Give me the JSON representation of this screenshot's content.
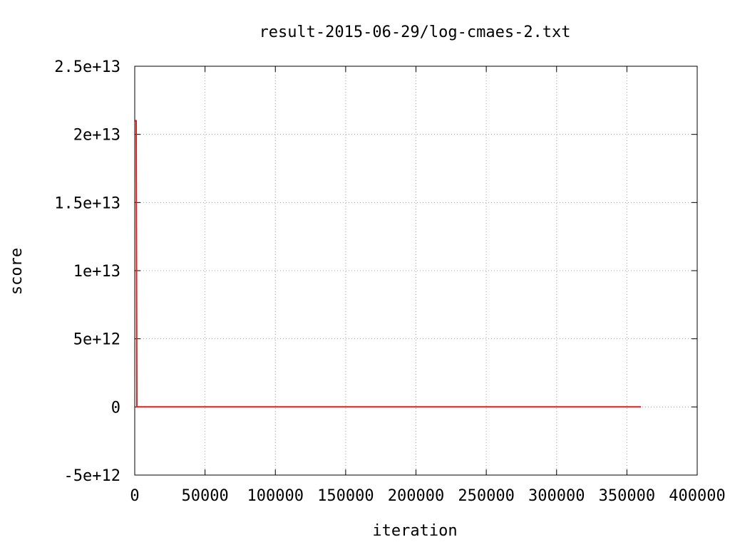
{
  "chart_data": {
    "type": "line",
    "title": "result-2015-06-29/log-cmaes-2.txt",
    "xlabel": "iteration",
    "ylabel": "score",
    "xlim": [
      0,
      400000
    ],
    "ylim": [
      -5000000000000,
      25000000000000
    ],
    "x_ticks": [
      0,
      50000,
      100000,
      150000,
      200000,
      250000,
      300000,
      350000,
      400000
    ],
    "x_tick_labels": [
      "0",
      "50000",
      "100000",
      "150000",
      "200000",
      "250000",
      "300000",
      "350000",
      "400000"
    ],
    "y_ticks": [
      -5000000000000,
      0,
      5000000000000,
      10000000000000,
      15000000000000,
      20000000000000,
      25000000000000
    ],
    "y_tick_labels": [
      "-5e+12",
      "0",
      "5e+12",
      "1e+13",
      "1.5e+13",
      "2e+13",
      "2.5e+13"
    ],
    "grid": true,
    "series": [
      {
        "color": "#e0201c",
        "x": [
          0,
          1000,
          1500,
          2000,
          10000,
          50000,
          100000,
          200000,
          300000,
          360000
        ],
        "y": [
          21000000000000,
          21000000000000,
          0,
          0,
          0,
          0,
          0,
          0,
          0,
          0
        ]
      }
    ]
  }
}
